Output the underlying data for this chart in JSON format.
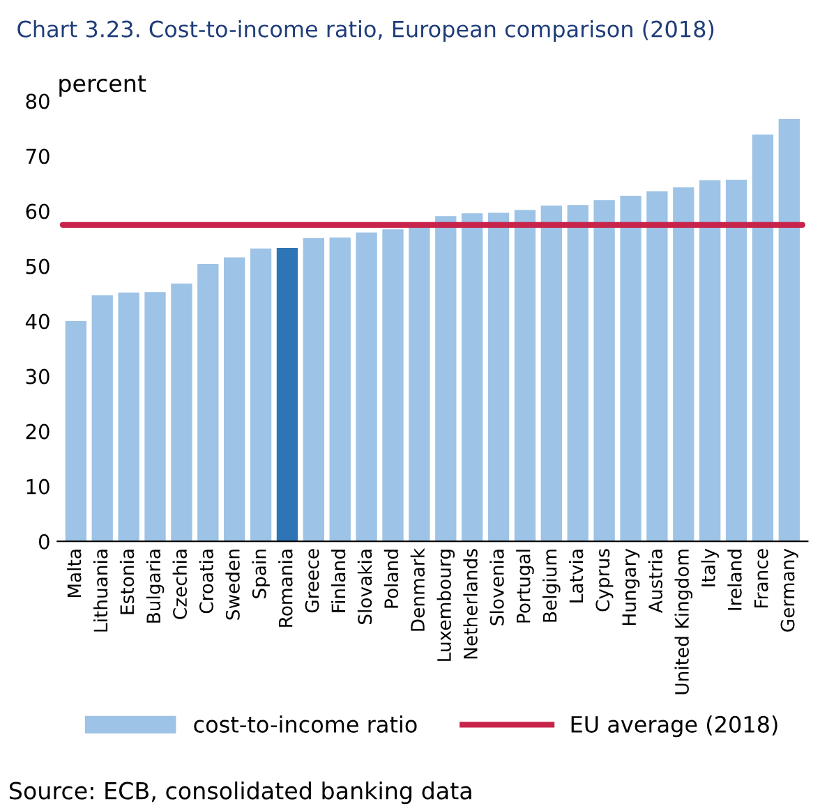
{
  "chart_data": {
    "type": "bar",
    "title": "Chart 3.23. Cost-to-income ratio, European comparison (2018)",
    "ylabel": "percent",
    "categories": [
      "Malta",
      "Lithuania",
      "Estonia",
      "Bulgaria",
      "Czechia",
      "Croatia",
      "Sweden",
      "Spain",
      "Romania",
      "Greece",
      "Finland",
      "Slovakia",
      "Poland",
      "Denmark",
      "Luxembourg",
      "Netherlands",
      "Slovenia",
      "Portugal",
      "Belgium",
      "Latvia",
      "Cyprus",
      "Hungary",
      "Austria",
      "United Kingdom",
      "Italy",
      "Ireland",
      "France",
      "Germany"
    ],
    "series": [
      {
        "name": "cost-to-income ratio",
        "color": "#9dc3e6",
        "colors": [
          "#9dc3e6",
          "#9dc3e6",
          "#9dc3e6",
          "#9dc3e6",
          "#9dc3e6",
          "#9dc3e6",
          "#9dc3e6",
          "#9dc3e6",
          "#2e75b6",
          "#9dc3e6",
          "#9dc3e6",
          "#9dc3e6",
          "#9dc3e6",
          "#9dc3e6",
          "#9dc3e6",
          "#9dc3e6",
          "#9dc3e6",
          "#9dc3e6",
          "#9dc3e6",
          "#9dc3e6",
          "#9dc3e6",
          "#9dc3e6",
          "#9dc3e6",
          "#9dc3e6",
          "#9dc3e6",
          "#9dc3e6",
          "#9dc3e6",
          "#9dc3e6"
        ],
        "values": [
          40,
          44.7,
          45.2,
          45.3,
          46.8,
          50.4,
          51.6,
          53.2,
          53.3,
          55.1,
          55.2,
          56.1,
          56.7,
          57.3,
          59.1,
          59.6,
          59.7,
          60.2,
          61,
          61.1,
          62,
          62.8,
          63.6,
          64.3,
          65.6,
          65.7,
          73.9,
          76.7
        ]
      }
    ],
    "ylim": [
      0,
      80
    ],
    "yticks": [
      0,
      10,
      20,
      30,
      40,
      50,
      60,
      70,
      80
    ],
    "grid": false,
    "legend": "bottom",
    "ref_lines": [
      {
        "axis": "y",
        "value": 57.5,
        "label": "EU average (2018)",
        "color": "#c8234a"
      }
    ],
    "annotations": [
      "Source: ECB, consolidated banking data"
    ]
  }
}
